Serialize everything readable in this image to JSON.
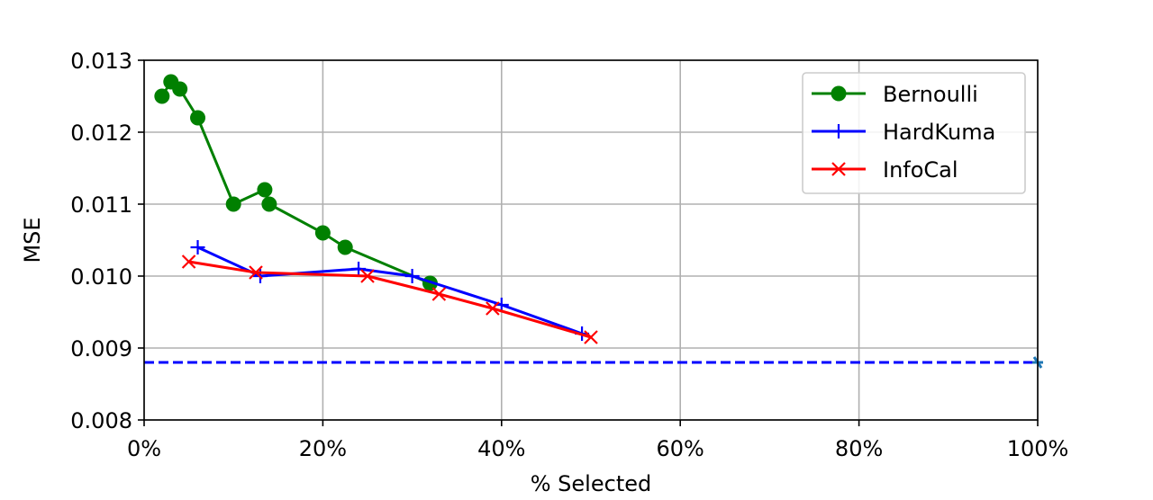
{
  "chart_data": {
    "type": "line",
    "xlabel": "% Selected",
    "ylabel": "MSE",
    "xlim": [
      0,
      100
    ],
    "ylim": [
      0.008,
      0.013
    ],
    "xticks": [
      {
        "value": 0,
        "label": "0%"
      },
      {
        "value": 20,
        "label": "20%"
      },
      {
        "value": 40,
        "label": "40%"
      },
      {
        "value": 60,
        "label": "60%"
      },
      {
        "value": 80,
        "label": "80%"
      },
      {
        "value": 100,
        "label": "100%"
      }
    ],
    "yticks": [
      {
        "value": 0.008,
        "label": "0.008"
      },
      {
        "value": 0.009,
        "label": "0.009"
      },
      {
        "value": 0.01,
        "label": "0.010"
      },
      {
        "value": 0.011,
        "label": "0.011"
      },
      {
        "value": 0.012,
        "label": "0.012"
      },
      {
        "value": 0.013,
        "label": "0.013"
      }
    ],
    "grid": true,
    "legend": "top-right",
    "series": [
      {
        "name": "Bernoulli",
        "color": "#008000",
        "marker": "circle",
        "x": [
          2,
          3,
          4,
          6,
          10,
          13.5,
          14,
          20,
          22.5,
          32
        ],
        "y": [
          0.0125,
          0.0127,
          0.0126,
          0.0122,
          0.011,
          0.0112,
          0.011,
          0.0106,
          0.0104,
          0.0099
        ]
      },
      {
        "name": "HardKuma",
        "color": "#0000ff",
        "marker": "plus",
        "x": [
          6,
          13,
          24,
          30,
          40,
          49
        ],
        "y": [
          0.0104,
          0.01,
          0.0101,
          0.01,
          0.0096,
          0.0092
        ]
      },
      {
        "name": "InfoCal",
        "color": "#ff0000",
        "marker": "x",
        "x": [
          5,
          12.5,
          25,
          33,
          39,
          50
        ],
        "y": [
          0.0102,
          0.01005,
          0.01,
          0.00975,
          0.00955,
          0.00915
        ]
      }
    ],
    "reference_line": {
      "y": 0.0088,
      "color": "#0000ff",
      "style": "dashed",
      "x_range": [
        0,
        100
      ],
      "end_marker_x": 100
    }
  }
}
